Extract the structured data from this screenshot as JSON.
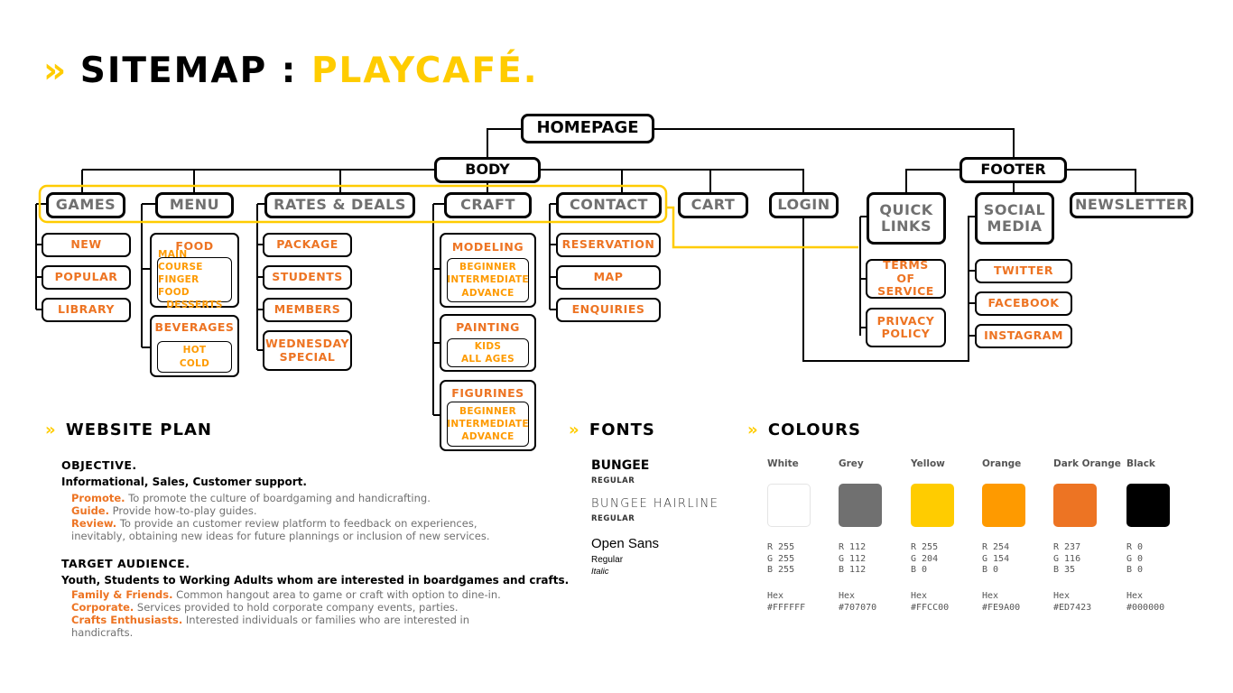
{
  "header": {
    "chevron": "»",
    "title_prefix": "SITEMAP :",
    "title_accent": "PLAYCAFÉ."
  },
  "sitemap": {
    "homepage": "HOMEPAGE",
    "body": "BODY",
    "footer": "FOOTER",
    "games": {
      "label": "GAMES",
      "items": [
        "NEW",
        "POPULAR",
        "LIBRARY"
      ]
    },
    "menu": {
      "label": "MENU",
      "food": {
        "label": "FOOD",
        "items": [
          "MAIN COURSE",
          "FINGER FOOD",
          "DESSERTS"
        ]
      },
      "beverages": {
        "label": "BEVERAGES",
        "items": [
          "HOT",
          "COLD"
        ]
      }
    },
    "rates": {
      "label": "RATES & DEALS",
      "items": [
        "PACKAGE",
        "STUDENTS",
        "MEMBERS",
        "WEDNESDAY SPECIAL"
      ]
    },
    "craft": {
      "label": "CRAFT",
      "modeling": {
        "label": "MODELING",
        "items": [
          "BEGINNER",
          "INTERMEDIATE",
          "ADVANCE"
        ]
      },
      "painting": {
        "label": "PAINTING",
        "items": [
          "KIDS",
          "ALL AGES"
        ]
      },
      "figurines": {
        "label": "FIGURINES",
        "items": [
          "BEGINNER",
          "INTERMEDIATE",
          "ADVANCE"
        ]
      }
    },
    "contact": {
      "label": "CONTACT",
      "items": [
        "RESERVATION",
        "MAP",
        "ENQUIRIES"
      ]
    },
    "cart": "CART",
    "login": "LOGIN",
    "quick_links": {
      "label": "QUICK LINKS",
      "items": [
        "TERMS OF SERVICE",
        "PRIVACY POLICY"
      ]
    },
    "social_media": {
      "label": "SOCIAL MEDIA",
      "items": [
        "TWITTER",
        "FACEBOOK",
        "INSTAGRAM"
      ]
    },
    "newsletter": "NEWSLETTER"
  },
  "plan": {
    "heading": "WEBSITE PLAN",
    "objective_title": "OBJECTIVE.",
    "objective_line": "Informational, Sales, Customer support.",
    "objectives": [
      {
        "key": "Promote.",
        "text": "To promote the culture of boardgaming and handicrafting."
      },
      {
        "key": "Guide.",
        "text": "Provide  how-to-play guides."
      },
      {
        "key": "Review.",
        "text": "To provide an customer review platform to feedback on experiences, inevitably, obtaining new ideas for future plannings or inclusion of new services."
      }
    ],
    "audience_title": "TARGET AUDIENCE.",
    "audience_line": "Youth, Students to Working Adults whom are interested in boardgames and crafts.",
    "audiences": [
      {
        "key": "Family & Friends.",
        "text": "Common hangout area to game or craft with option to dine-in."
      },
      {
        "key": "Corporate.",
        "text": "Services provided to hold corporate company events, parties."
      },
      {
        "key": "Crafts Enthusiasts.",
        "text": "Interested individuals or families who are interested in handicrafts."
      }
    ]
  },
  "fonts": {
    "heading": "FONTS",
    "list": [
      {
        "name": "BUNGEE",
        "styles": [
          "REGULAR"
        ]
      },
      {
        "name": "BUNGEE HAIRLINE",
        "styles": [
          "REGULAR"
        ]
      },
      {
        "name": "Open Sans",
        "styles": [
          "Regular",
          "Italic"
        ]
      }
    ]
  },
  "colours": {
    "heading": "COLOURS",
    "list": [
      {
        "name": "White",
        "hex": "#FFFFFF",
        "r": "R 255",
        "g": "G 255",
        "b": "B 255",
        "hex_label": "#FFFFFF"
      },
      {
        "name": "Grey",
        "hex": "#707070",
        "r": "R 112",
        "g": "G 112",
        "b": "B 112",
        "hex_label": "#707070"
      },
      {
        "name": "Yellow",
        "hex": "#FFCC00",
        "r": "R 255",
        "g": "G 204",
        "b": "B 0",
        "hex_label": "#FFCC00"
      },
      {
        "name": "Orange",
        "hex": "#FE9A00",
        "r": "R 254",
        "g": "G 154",
        "b": "B 0",
        "hex_label": "#FE9A00"
      },
      {
        "name": "Dark Orange",
        "hex": "#ED7423",
        "r": "R 237",
        "g": "G 116",
        "b": "B 35",
        "hex_label": "#ED7423"
      },
      {
        "name": "Black",
        "hex": "#000000",
        "r": "R 0",
        "g": "G 0",
        "b": "B 0",
        "hex_label": "#000000"
      }
    ],
    "hex_prefix": "Hex"
  }
}
